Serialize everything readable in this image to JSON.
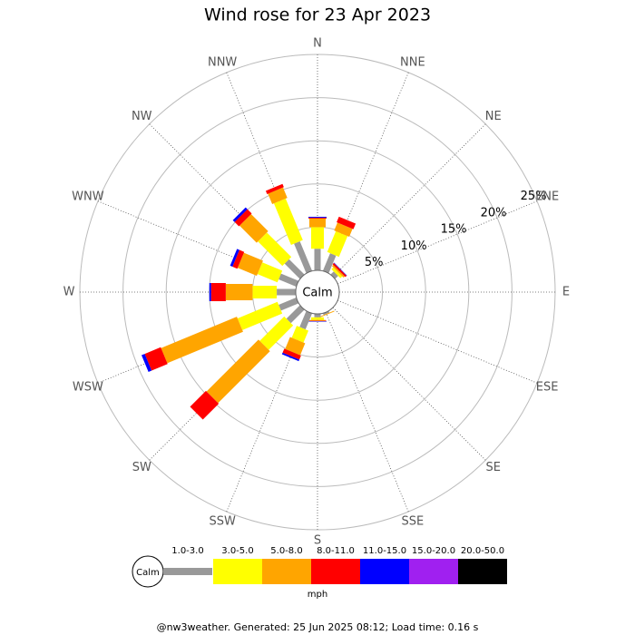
{
  "chart_data": {
    "type": "windrose",
    "title": "Wind rose for 23 Apr 2023",
    "directions": [
      "N",
      "NNE",
      "NE",
      "ENE",
      "E",
      "ESE",
      "SE",
      "SSE",
      "S",
      "SSW",
      "SW",
      "WSW",
      "W",
      "WNW",
      "NW",
      "NNW"
    ],
    "series": [
      {
        "name": "1.0-3.0",
        "color": "#999999",
        "values": [
          2.5,
          2.2,
          0.5,
          0,
          0,
          0,
          0,
          0.2,
          0.4,
          2.0,
          2.2,
          2.2,
          2.2,
          2.2,
          2.5,
          3.7
        ]
      },
      {
        "name": "3.0-5.0",
        "color": "#ffff00",
        "values": [
          2.5,
          2.6,
          0.3,
          0,
          0,
          0,
          0,
          0,
          0.3,
          1.5,
          4.0,
          5.0,
          2.8,
          2.5,
          4.0,
          5.2
        ]
      },
      {
        "name": "5.0-8.0",
        "color": "#ffa500",
        "values": [
          1.0,
          1.0,
          0.2,
          0,
          0,
          0,
          0,
          0.1,
          0.1,
          1.5,
          8.5,
          9.5,
          3.1,
          2.4,
          2.8,
          1.3
        ]
      },
      {
        "name": "8.0-11.0",
        "color": "#ff0000",
        "values": [
          0.1,
          0.7,
          0.2,
          0,
          0,
          0,
          0,
          0,
          0.05,
          0.5,
          2.6,
          2.0,
          1.7,
          0.6,
          0.7,
          0.4
        ]
      },
      {
        "name": "11.0-15.0",
        "color": "#0000ff",
        "values": [
          0.1,
          0,
          0.05,
          0,
          0,
          0,
          0,
          0,
          0.05,
          0.2,
          0,
          0.4,
          0.2,
          0.3,
          0.3,
          0
        ]
      },
      {
        "name": "15.0-20.0",
        "color": "#a020f0",
        "values": [
          0,
          0,
          0,
          0,
          0,
          0,
          0,
          0,
          0,
          0,
          0,
          0,
          0,
          0,
          0,
          0
        ]
      },
      {
        "name": "20.0-50.0",
        "color": "#000000",
        "values": [
          0,
          0,
          0,
          0,
          0,
          0,
          0,
          0,
          0,
          0,
          0,
          0,
          0,
          0,
          0,
          0
        ]
      }
    ],
    "rlim": [
      0,
      25
    ],
    "rticks": [
      {
        "value": 5,
        "label": "5%"
      },
      {
        "value": 10,
        "label": "10%"
      },
      {
        "value": 15,
        "label": "15%"
      },
      {
        "value": 20,
        "label": "20%"
      },
      {
        "value": 25,
        "label": "25%"
      }
    ],
    "calm_label": "Calm",
    "unit": "mph",
    "footer": "@nw3weather. Generated: 25 Jun 2025 08:12; Load time: 0.16 s"
  }
}
